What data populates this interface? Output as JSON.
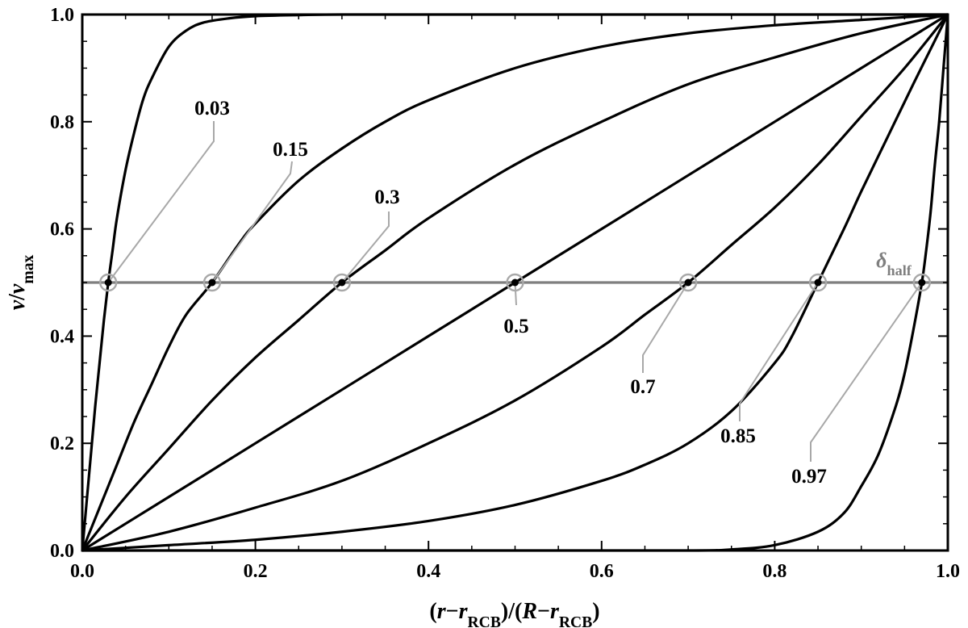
{
  "chart_data": {
    "type": "line",
    "title": "",
    "xlabel": {
      "parts": [
        {
          "t": "(",
          "style": "bold"
        },
        {
          "t": "r",
          "style": "italic"
        },
        {
          "t": "−",
          "style": "bold"
        },
        {
          "t": "r",
          "style": "italic"
        },
        {
          "t": "RCB",
          "style": "sub"
        },
        {
          "t": ")/(",
          "style": "bold"
        },
        {
          "t": "R",
          "style": "italic"
        },
        {
          "t": "−",
          "style": "bold"
        },
        {
          "t": "r",
          "style": "italic"
        },
        {
          "t": "RCB",
          "style": "sub"
        },
        {
          "t": ")",
          "style": "bold"
        }
      ]
    },
    "ylabel": {
      "parts": [
        {
          "t": "v",
          "style": "italic"
        },
        {
          "t": "/",
          "style": "bold"
        },
        {
          "t": "v",
          "style": "italic"
        },
        {
          "t": "max",
          "style": "sub"
        }
      ]
    },
    "xlim": [
      0,
      1
    ],
    "ylim": [
      0,
      1
    ],
    "xticks": [
      "0.0",
      "0.2",
      "0.4",
      "0.6",
      "0.8",
      "1.0"
    ],
    "yticks": [
      "0.0",
      "0.2",
      "0.4",
      "0.6",
      "0.8",
      "1.0"
    ],
    "grid": false,
    "reference_line": {
      "y": 0.5,
      "label": {
        "parts": [
          {
            "t": "δ",
            "style": "italic"
          },
          {
            "t": "half",
            "style": "sub"
          }
        ]
      },
      "color": "#7f7f7f"
    },
    "series": [
      {
        "name": "0.03",
        "half_point": 0.03,
        "x": [
          0,
          0.005,
          0.01,
          0.015,
          0.02,
          0.025,
          0.03,
          0.035,
          0.04,
          0.05,
          0.06,
          0.07,
          0.08,
          0.1,
          0.12,
          0.14,
          0.17,
          0.2,
          0.25,
          0.3,
          0.4,
          0.5,
          0.7,
          1.0
        ],
        "y": [
          0,
          0.09,
          0.18,
          0.27,
          0.35,
          0.43,
          0.5,
          0.56,
          0.62,
          0.71,
          0.78,
          0.84,
          0.88,
          0.94,
          0.97,
          0.985,
          0.993,
          0.997,
          0.999,
          1.0,
          1.0,
          1.0,
          1.0,
          1.0
        ]
      },
      {
        "name": "0.15",
        "half_point": 0.15,
        "x": [
          0,
          0.02,
          0.04,
          0.06,
          0.08,
          0.1,
          0.12,
          0.15,
          0.18,
          0.2,
          0.25,
          0.3,
          0.35,
          0.4,
          0.5,
          0.6,
          0.7,
          0.8,
          0.9,
          1.0
        ],
        "y": [
          0,
          0.08,
          0.16,
          0.24,
          0.31,
          0.38,
          0.44,
          0.5,
          0.57,
          0.61,
          0.69,
          0.75,
          0.8,
          0.84,
          0.9,
          0.94,
          0.965,
          0.98,
          0.99,
          1.0
        ]
      },
      {
        "name": "0.3",
        "half_point": 0.3,
        "x": [
          0,
          0.05,
          0.1,
          0.15,
          0.2,
          0.25,
          0.3,
          0.35,
          0.4,
          0.5,
          0.6,
          0.7,
          0.8,
          0.9,
          1.0
        ],
        "y": [
          0,
          0.1,
          0.19,
          0.28,
          0.36,
          0.43,
          0.5,
          0.56,
          0.62,
          0.72,
          0.8,
          0.87,
          0.92,
          0.965,
          1.0
        ]
      },
      {
        "name": "0.5",
        "half_point": 0.5,
        "x": [
          0,
          0.1,
          0.2,
          0.3,
          0.4,
          0.5,
          0.6,
          0.7,
          0.8,
          0.9,
          1.0
        ],
        "y": [
          0,
          0.1,
          0.2,
          0.3,
          0.4,
          0.5,
          0.6,
          0.7,
          0.8,
          0.9,
          1.0
        ]
      },
      {
        "name": "0.7",
        "half_point": 0.7,
        "x": [
          0,
          0.1,
          0.2,
          0.3,
          0.4,
          0.5,
          0.6,
          0.65,
          0.7,
          0.75,
          0.8,
          0.85,
          0.9,
          0.95,
          1.0
        ],
        "y": [
          0,
          0.035,
          0.08,
          0.13,
          0.2,
          0.28,
          0.38,
          0.44,
          0.5,
          0.57,
          0.64,
          0.72,
          0.81,
          0.9,
          1.0
        ]
      },
      {
        "name": "0.85",
        "half_point": 0.85,
        "x": [
          0,
          0.1,
          0.2,
          0.3,
          0.4,
          0.5,
          0.6,
          0.65,
          0.7,
          0.75,
          0.8,
          0.82,
          0.85,
          0.88,
          0.9,
          0.93,
          0.96,
          1.0
        ],
        "y": [
          0,
          0.01,
          0.02,
          0.035,
          0.055,
          0.085,
          0.13,
          0.16,
          0.2,
          0.26,
          0.35,
          0.4,
          0.5,
          0.6,
          0.67,
          0.77,
          0.87,
          1.0
        ]
      },
      {
        "name": "0.97",
        "half_point": 0.97,
        "x": [
          0,
          0.5,
          0.7,
          0.75,
          0.8,
          0.85,
          0.88,
          0.9,
          0.92,
          0.94,
          0.95,
          0.96,
          0.97,
          0.975,
          0.98,
          0.985,
          0.99,
          0.995,
          1.0
        ],
        "y": [
          0,
          0.0,
          0.0,
          0.002,
          0.01,
          0.035,
          0.07,
          0.12,
          0.18,
          0.27,
          0.33,
          0.41,
          0.5,
          0.56,
          0.63,
          0.72,
          0.8,
          0.9,
          1.0
        ]
      }
    ]
  }
}
